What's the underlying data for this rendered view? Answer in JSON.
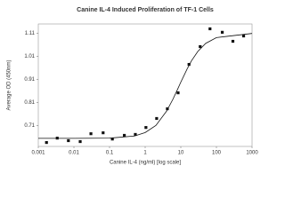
{
  "chart_data": {
    "type": "scatter",
    "title": "Canine IL-4 Induced Proliferation of TF-1 Cells",
    "x_label": "Canine IL-4 (ng/ml) [log scale]",
    "y_label": "Average OD (450nm)",
    "x_scale": "log",
    "xlim": [
      0.001,
      1000
    ],
    "xticks": [
      0.001,
      0.01,
      0.1,
      1,
      10,
      100,
      1000
    ],
    "ylim": [
      0.62,
      1.15
    ],
    "yticks": [
      0.71,
      0.81,
      0.91,
      1.01,
      1.11
    ],
    "color": "#111111",
    "x": [
      0.0017,
      0.0034,
      0.007,
      0.015,
      0.03,
      0.066,
      0.12,
      0.26,
      0.53,
      1.05,
      2.1,
      4.2,
      8.4,
      17,
      35,
      66,
      146,
      290,
      580
    ],
    "values": [
      0.637,
      0.656,
      0.645,
      0.641,
      0.675,
      0.679,
      0.652,
      0.668,
      0.672,
      0.702,
      0.741,
      0.783,
      0.852,
      0.975,
      1.052,
      1.129,
      1.114,
      1.075,
      1.098
    ],
    "curve": {
      "color": "#111111",
      "x": [
        0.001,
        0.01,
        0.1,
        0.5,
        1,
        2,
        4,
        6,
        8,
        10,
        15,
        20,
        30,
        50,
        100,
        1000
      ],
      "values": [
        0.655,
        0.655,
        0.656,
        0.665,
        0.68,
        0.711,
        0.773,
        0.824,
        0.865,
        0.898,
        0.955,
        0.991,
        1.031,
        1.066,
        1.091,
        1.109
      ]
    }
  }
}
